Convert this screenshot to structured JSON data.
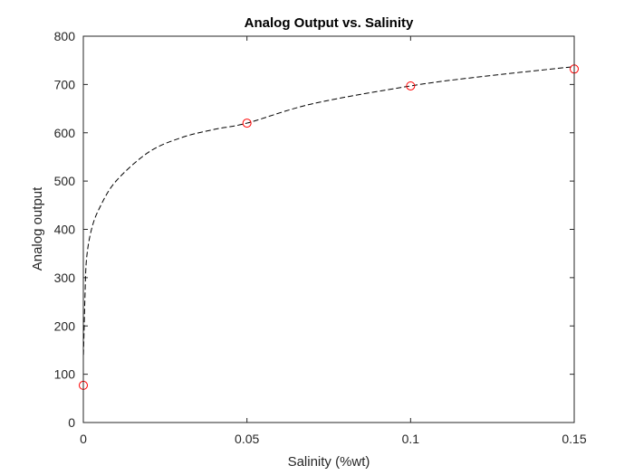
{
  "chart_data": {
    "type": "scatter",
    "title": "Analog Output vs. Salinity",
    "xlabel": "Salinity (%wt)",
    "ylabel": "Analog output",
    "xlim": [
      0,
      0.15
    ],
    "ylim": [
      0,
      800
    ],
    "xticks": [
      "0",
      "0.05",
      "0.1",
      "0.15"
    ],
    "xtick_values": [
      0,
      0.05,
      0.1,
      0.15
    ],
    "yticks": [
      "0",
      "100",
      "200",
      "300",
      "400",
      "500",
      "600",
      "700",
      "800"
    ],
    "ytick_values": [
      0,
      100,
      200,
      300,
      400,
      500,
      600,
      700,
      800
    ],
    "grid": false,
    "series": [
      {
        "kind": "markers",
        "marker": "circle",
        "color": "#ff0000",
        "x": [
          0,
          0.05,
          0.1,
          0.15
        ],
        "y": [
          77,
          620,
          697,
          732
        ]
      },
      {
        "kind": "fit-line",
        "style": "dashed",
        "color": "#000000",
        "x": [
          5e-05,
          0.0005,
          0.001,
          0.0025,
          0.005,
          0.01,
          0.02,
          0.03,
          0.04,
          0.05,
          0.07,
          0.1,
          0.12,
          0.15
        ],
        "y": [
          140,
          260,
          340,
          400,
          445,
          500,
          560,
          590,
          607,
          620,
          660,
          697,
          715,
          737
        ]
      }
    ]
  }
}
